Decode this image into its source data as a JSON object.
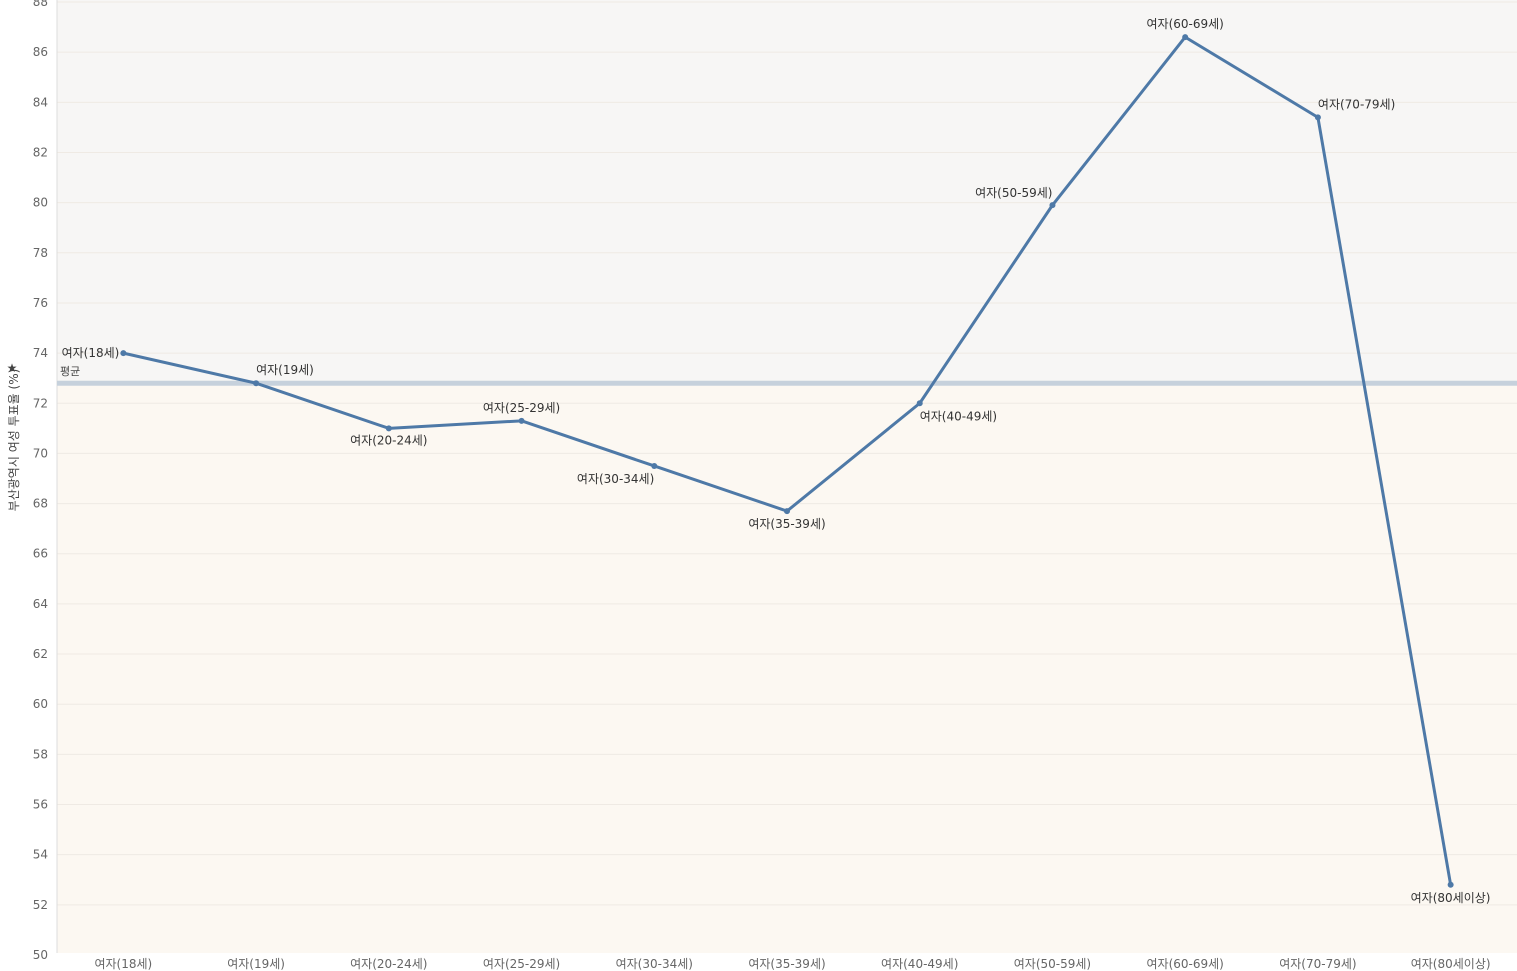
{
  "chart_data": {
    "type": "line",
    "ylabel": "부산광역시 여성 투표율 (%)",
    "ylim": [
      50,
      88
    ],
    "yticks": [
      50,
      52,
      54,
      56,
      58,
      60,
      62,
      64,
      66,
      68,
      70,
      72,
      74,
      76,
      78,
      80,
      82,
      84,
      86,
      88
    ],
    "categories": [
      "여자(18세)",
      "여자(19세)",
      "여자(20-24세)",
      "여자(25-29세)",
      "여자(30-34세)",
      "여자(35-39세)",
      "여자(40-49세)",
      "여자(50-59세)",
      "여자(60-69세)",
      "여자(70-79세)",
      "여자(80세이상)"
    ],
    "series": [
      {
        "values": [
          74.0,
          72.8,
          71.0,
          71.3,
          69.5,
          67.7,
          72.0,
          79.9,
          86.6,
          83.4,
          52.8
        ]
      }
    ],
    "reference_line": {
      "label": "평균",
      "value": 72.8
    },
    "colors": {
      "line": "#4e79a7",
      "band_above": "#f7f6f5",
      "band_below": "#fcf8f2",
      "reference": "#c6d1dc",
      "grid": "#efeae4"
    },
    "grid": true,
    "legend": "none"
  }
}
